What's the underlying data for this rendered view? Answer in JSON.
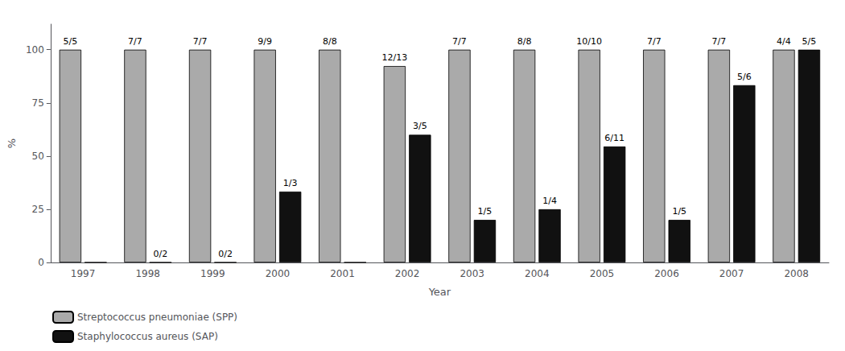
{
  "chart_data": {
    "type": "bar",
    "categories": [
      "1997",
      "1998",
      "1999",
      "2000",
      "2001",
      "2002",
      "2003",
      "2004",
      "2005",
      "2006",
      "2007",
      "2008"
    ],
    "series": [
      {
        "name": "Streptococcus pneumoniae (SPP)",
        "color": "#aaaaaa",
        "values": [
          100,
          100,
          100,
          100,
          100,
          92.3,
          100,
          100,
          100,
          100,
          100,
          100
        ],
        "value_labels": [
          "5/5",
          "7/7",
          "7/7",
          "9/9",
          "8/8",
          "12/13",
          "7/7",
          "8/8",
          "10/10",
          "7/7",
          "7/7",
          "4/4"
        ]
      },
      {
        "name": "Staphylococcus aureus (SAP)",
        "color": "#111111",
        "values": [
          0,
          0,
          0,
          33.3,
          0,
          60.0,
          20.0,
          25.0,
          54.5,
          20.0,
          83.3,
          100
        ],
        "value_labels": [
          null,
          "0/2",
          "0/2",
          "1/3",
          null,
          "3/5",
          "1/5",
          "1/4",
          "6/11",
          "1/5",
          "5/6",
          "5/5"
        ]
      }
    ],
    "xlabel": "Year",
    "ylabel": "%",
    "ylim": [
      0,
      112
    ],
    "yticks": [
      0,
      25,
      50,
      75,
      100
    ],
    "grid": false,
    "legend": "lower left"
  }
}
